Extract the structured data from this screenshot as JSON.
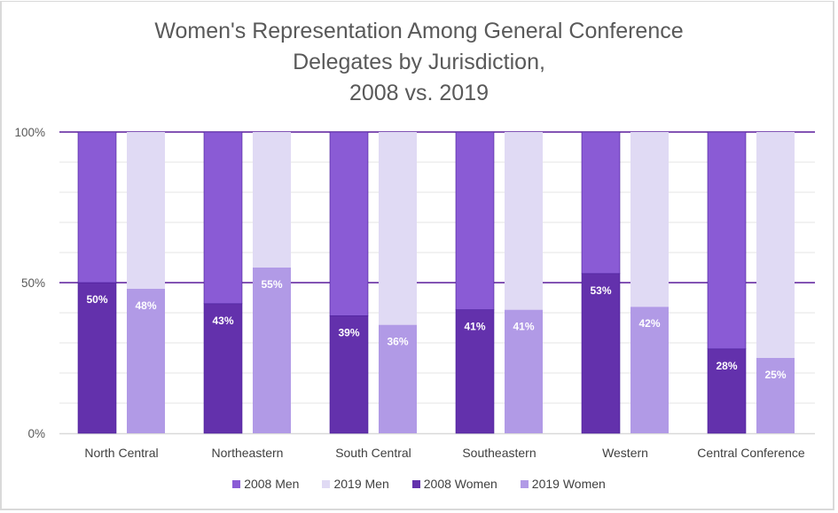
{
  "chart_data": {
    "type": "bar",
    "subtype": "stacked-100-percent-grouped",
    "title": [
      "Women's Representation Among General Conference",
      "Delegates by Jurisdiction,",
      "2008 vs. 2019"
    ],
    "xlabel": "",
    "ylabel": "",
    "ylim": [
      0,
      1
    ],
    "yticks": [
      "0%",
      "50%",
      "100%"
    ],
    "ytick_values": [
      0,
      0.5,
      1
    ],
    "minor_grid_step": 0.1,
    "grid": true,
    "legend_position": "bottom",
    "categories": [
      "North Central",
      "Northeastern",
      "South Central",
      "Southeastern",
      "Western",
      "Central Conference"
    ],
    "groups": [
      {
        "year": "2008",
        "stack": [
          {
            "name": "2008 Women",
            "values": [
              0.5,
              0.43,
              0.39,
              0.41,
              0.53,
              0.28
            ],
            "labels": [
              "50%",
              "43%",
              "39%",
              "41%",
              "53%",
              "28%"
            ]
          },
          {
            "name": "2008 Men",
            "values": [
              0.5,
              0.57,
              0.61,
              0.59,
              0.47,
              0.72
            ]
          }
        ]
      },
      {
        "year": "2019",
        "stack": [
          {
            "name": "2019 Women",
            "values": [
              0.48,
              0.55,
              0.36,
              0.41,
              0.42,
              0.25
            ],
            "labels": [
              "48%",
              "55%",
              "36%",
              "41%",
              "42%",
              "25%"
            ]
          },
          {
            "name": "2019 Men",
            "values": [
              0.52,
              0.45,
              0.64,
              0.59,
              0.58,
              0.75
            ]
          }
        ]
      }
    ],
    "legend": [
      {
        "name": "2008 Men",
        "color": "#8a5bd5"
      },
      {
        "name": "2019 Men",
        "color": "#e0daf4"
      },
      {
        "name": "2008 Women",
        "color": "#6331ac"
      },
      {
        "name": "2019 Women",
        "color": "#b19ae6"
      }
    ],
    "colors": {
      "2008 Men": "#8a5bd5",
      "2019 Men": "#e0daf4",
      "2008 Women": "#6331ac",
      "2019 Women": "#b19ae6",
      "major_grid": "#5a1c9c",
      "minor_grid": "#eeeeee",
      "axis": "#d9d9d9"
    }
  }
}
